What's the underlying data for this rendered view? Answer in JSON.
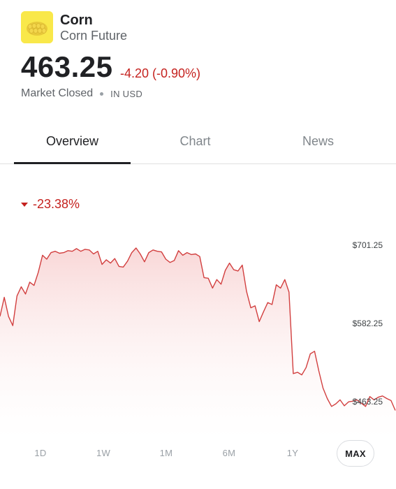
{
  "asset": {
    "name": "Corn",
    "subtitle": "Corn Future",
    "logo_icon": "corn-icon",
    "price": "463.25",
    "change": "-4.20 (-0.90%)",
    "market_status": "Market Closed",
    "currency": "IN USD"
  },
  "tabs": [
    {
      "label": "Overview",
      "active": true
    },
    {
      "label": "Chart",
      "active": false
    },
    {
      "label": "News",
      "active": false
    }
  ],
  "performance": {
    "direction_icon": "triangle-down-icon",
    "percent": "-23.38%"
  },
  "chart_data": {
    "type": "area",
    "line_color": "#d23f3f",
    "fill_color": "#fbe3e3",
    "y_ticks": [
      "$701.25",
      "$582.25",
      "$463.25"
    ],
    "y_tick_values": [
      701.25,
      582.25,
      463.25
    ],
    "ylim": [
      440,
      740
    ],
    "grid": false,
    "x_range_label": "MAX",
    "values": [
      593,
      622,
      593,
      579,
      624,
      638,
      627,
      645,
      640,
      660,
      686,
      680,
      690,
      692,
      689,
      690,
      693,
      692,
      696,
      692,
      695,
      694,
      688,
      692,
      672,
      679,
      674,
      681,
      669,
      668,
      677,
      690,
      697,
      688,
      676,
      690,
      694,
      692,
      691,
      680,
      675,
      678,
      693,
      686,
      690,
      687,
      688,
      684,
      652,
      651,
      636,
      649,
      642,
      663,
      674,
      664,
      662,
      671,
      631,
      606,
      609,
      585,
      600,
      614,
      611,
      641,
      636,
      649,
      630,
      506,
      508,
      504,
      515,
      536,
      540,
      510,
      484,
      468,
      456,
      460,
      466,
      457,
      463,
      464,
      466,
      461,
      456,
      471,
      466,
      470,
      472,
      468,
      465,
      450
    ]
  },
  "ranges": [
    {
      "label": "1D",
      "active": false
    },
    {
      "label": "1W",
      "active": false
    },
    {
      "label": "1M",
      "active": false
    },
    {
      "label": "6M",
      "active": false
    },
    {
      "label": "1Y",
      "active": false
    },
    {
      "label": "MAX",
      "active": true
    }
  ]
}
